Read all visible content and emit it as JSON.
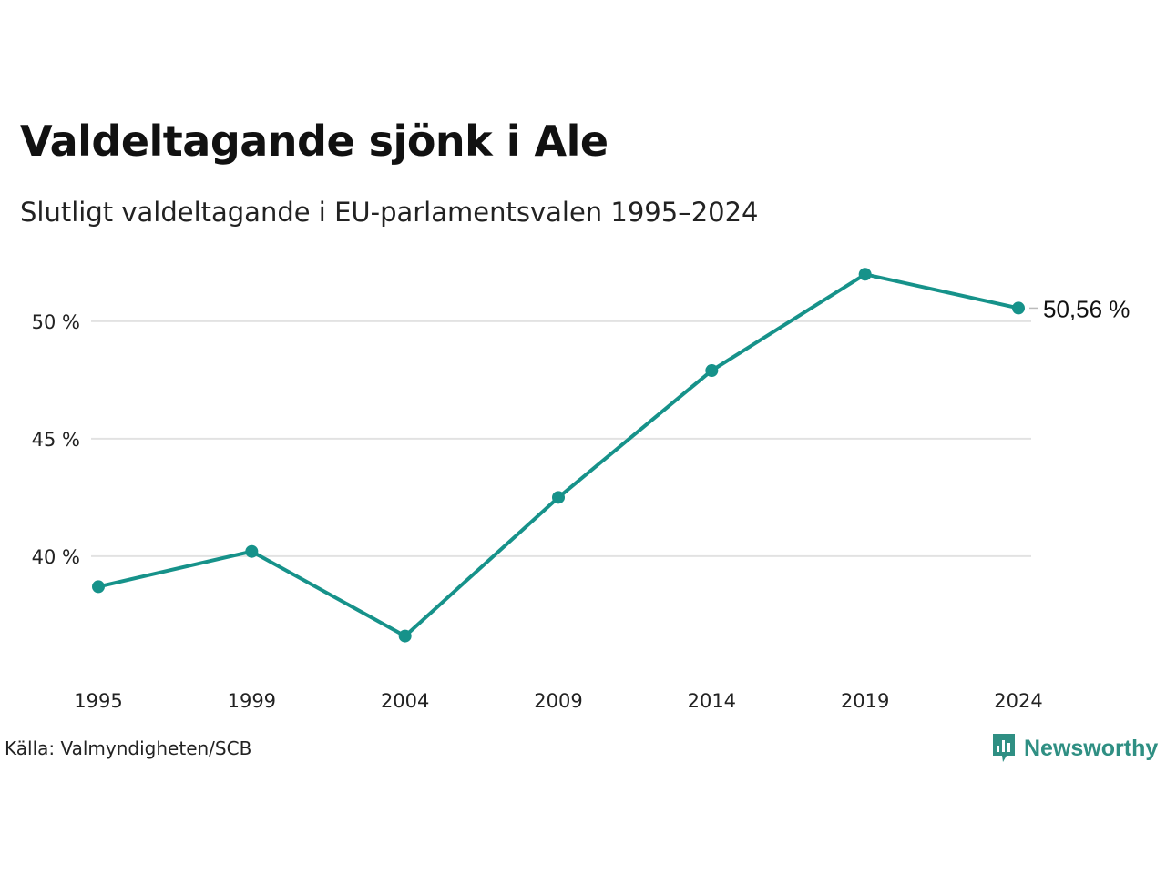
{
  "chart_data": {
    "type": "line",
    "title": "Valdeltagande sjönk i Ale",
    "subtitle": "Slutligt valdeltagande i EU-parlamentsvalen 1995–2024",
    "x": [
      "1995",
      "1999",
      "2004",
      "2009",
      "2014",
      "2019",
      "2024"
    ],
    "series": [
      {
        "name": "",
        "values": [
          38.7,
          40.2,
          36.6,
          42.5,
          47.9,
          52.0,
          50.56
        ]
      }
    ],
    "y_ticks": [
      40,
      45,
      50
    ],
    "y_tick_labels": [
      "40 %",
      "45 %",
      "50 %"
    ],
    "ylim": [
      34.8,
      53.6
    ],
    "end_label": "50,56 %",
    "grid": "horizontal",
    "line_color": "#16928a",
    "grid_color": "#e2e2e2"
  },
  "source": "Källa: Valmyndigheten/SCB",
  "brand": {
    "name": "Newsworthy",
    "color": "#2f8f83",
    "icon": "bar-chart-pin-icon"
  }
}
